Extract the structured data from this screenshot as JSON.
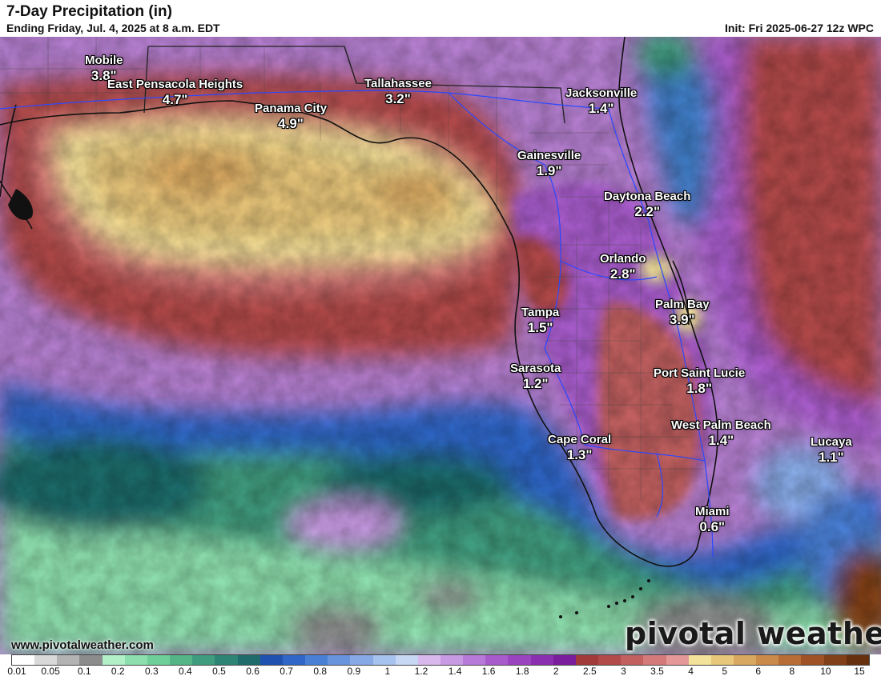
{
  "header": {
    "title": "7-Day Precipitation (in)",
    "subtitle": "Ending Friday, Jul. 4, 2025 at 8 a.m. EDT",
    "init": "Init: Fri 2025-06-27 12z WPC"
  },
  "cities": [
    {
      "name": "Mobile",
      "value": "3.8\""
    },
    {
      "name": "East Pensacola Heights",
      "value": "4.7\""
    },
    {
      "name": "Panama City",
      "value": "4.9\""
    },
    {
      "name": "Tallahassee",
      "value": "3.2\""
    },
    {
      "name": "Jacksonville",
      "value": "1.4\""
    },
    {
      "name": "Gainesville",
      "value": "1.9\""
    },
    {
      "name": "Daytona Beach",
      "value": "2.2\""
    },
    {
      "name": "Orlando",
      "value": "2.8\""
    },
    {
      "name": "Palm Bay",
      "value": "3.9\""
    },
    {
      "name": "Tampa",
      "value": "1.5\""
    },
    {
      "name": "Sarasota",
      "value": "1.2\""
    },
    {
      "name": "Port Saint Lucie",
      "value": "1.8\""
    },
    {
      "name": "West Palm Beach",
      "value": "1.4\""
    },
    {
      "name": "Cape Coral",
      "value": "1.3\""
    },
    {
      "name": "Lucaya",
      "value": "1.1\""
    },
    {
      "name": "Miami",
      "value": "0.6\""
    }
  ],
  "footer": {
    "website": "www.pivotalweather.com",
    "brand": "pivotal weather"
  },
  "legend": {
    "ticks": [
      "0.01",
      "0.05",
      "0.1",
      "0.2",
      "0.3",
      "0.4",
      "0.5",
      "0.6",
      "0.7",
      "0.8",
      "0.9",
      "1",
      "1.2",
      "1.4",
      "1.6",
      "1.8",
      "2",
      "2.5",
      "3",
      "3.5",
      "4",
      "5",
      "6",
      "8",
      "10",
      "15"
    ],
    "colors": [
      "#ffffff",
      "#d9d9d9",
      "#b3b3b3",
      "#8c8c8c",
      "#b2f0c8",
      "#8edfae",
      "#6fcf99",
      "#55b586",
      "#3f9c7e",
      "#2d8374",
      "#1f6a6a",
      "#1f52b0",
      "#2f66c8",
      "#4a7fd6",
      "#6894de",
      "#87aae6",
      "#a6c2ee",
      "#c7d8f5",
      "#d9b8ee",
      "#c99ae4",
      "#b87ad8",
      "#a85ccc",
      "#9a44c0",
      "#8a2fb0",
      "#7a1e9e",
      "#a33a3a",
      "#b24a4a",
      "#c26060",
      "#d47a7a",
      "#e49898",
      "#f3e29a",
      "#e8c67a",
      "#d9a860",
      "#c98a4a",
      "#b86c36",
      "#9e5226",
      "#824018",
      "#66300e"
    ]
  }
}
